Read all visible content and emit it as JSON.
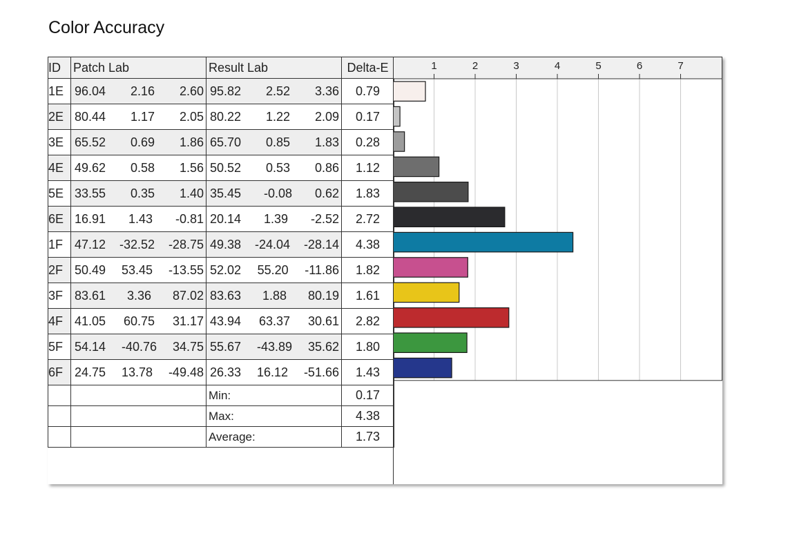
{
  "title": "Color Accuracy",
  "table": {
    "headers": {
      "id": "ID",
      "patch": "Patch Lab",
      "result": "Result Lab",
      "delta": "Delta-E"
    },
    "rows": [
      {
        "id": "1E",
        "patch": [
          "96.04",
          "2.16",
          "2.60"
        ],
        "result": [
          "95.82",
          "2.52",
          "3.36"
        ],
        "delta": "0.79"
      },
      {
        "id": "2E",
        "patch": [
          "80.44",
          "1.17",
          "2.05"
        ],
        "result": [
          "80.22",
          "1.22",
          "2.09"
        ],
        "delta": "0.17"
      },
      {
        "id": "3E",
        "patch": [
          "65.52",
          "0.69",
          "1.86"
        ],
        "result": [
          "65.70",
          "0.85",
          "1.83"
        ],
        "delta": "0.28"
      },
      {
        "id": "4E",
        "patch": [
          "49.62",
          "0.58",
          "1.56"
        ],
        "result": [
          "50.52",
          "0.53",
          "0.86"
        ],
        "delta": "1.12"
      },
      {
        "id": "5E",
        "patch": [
          "33.55",
          "0.35",
          "1.40"
        ],
        "result": [
          "35.45",
          "-0.08",
          "0.62"
        ],
        "delta": "1.83"
      },
      {
        "id": "6E",
        "patch": [
          "16.91",
          "1.43",
          "-0.81"
        ],
        "result": [
          "20.14",
          "1.39",
          "-2.52"
        ],
        "delta": "2.72"
      },
      {
        "id": "1F",
        "patch": [
          "47.12",
          "-32.52",
          "-28.75"
        ],
        "result": [
          "49.38",
          "-24.04",
          "-28.14"
        ],
        "delta": "4.38"
      },
      {
        "id": "2F",
        "patch": [
          "50.49",
          "53.45",
          "-13.55"
        ],
        "result": [
          "52.02",
          "55.20",
          "-11.86"
        ],
        "delta": "1.82"
      },
      {
        "id": "3F",
        "patch": [
          "83.61",
          "3.36",
          "87.02"
        ],
        "result": [
          "83.63",
          "1.88",
          "80.19"
        ],
        "delta": "1.61"
      },
      {
        "id": "4F",
        "patch": [
          "41.05",
          "60.75",
          "31.17"
        ],
        "result": [
          "43.94",
          "63.37",
          "30.61"
        ],
        "delta": "2.82"
      },
      {
        "id": "5F",
        "patch": [
          "54.14",
          "-40.76",
          "34.75"
        ],
        "result": [
          "55.67",
          "-43.89",
          "35.62"
        ],
        "delta": "1.80"
      },
      {
        "id": "6F",
        "patch": [
          "24.75",
          "13.78",
          "-49.48"
        ],
        "result": [
          "26.33",
          "16.12",
          "-51.66"
        ],
        "delta": "1.43"
      }
    ],
    "stats": [
      {
        "label": "Min:",
        "value": "0.17"
      },
      {
        "label": "Max:",
        "value": "4.38"
      },
      {
        "label": "Average:",
        "value": "1.73"
      }
    ]
  },
  "chart_data": {
    "type": "bar",
    "orientation": "horizontal",
    "categories": [
      "1E",
      "2E",
      "3E",
      "4E",
      "5E",
      "6E",
      "1F",
      "2F",
      "3F",
      "4F",
      "5F",
      "6F"
    ],
    "values": [
      0.79,
      0.17,
      0.28,
      1.12,
      1.83,
      2.72,
      4.38,
      1.82,
      1.61,
      2.82,
      1.8,
      1.43
    ],
    "bar_colors": [
      "#f7efec",
      "#c4c4c4",
      "#9c9c9c",
      "#6e6e6e",
      "#4c4c4c",
      "#2b2b2e",
      "#0e7ba3",
      "#c7508f",
      "#e8c519",
      "#bd2b2e",
      "#3c973f",
      "#25378c"
    ],
    "xticks": [
      "1",
      "2",
      "3",
      "4",
      "5",
      "6",
      "7"
    ],
    "xlim": [
      0,
      7.9
    ],
    "grid": true
  }
}
